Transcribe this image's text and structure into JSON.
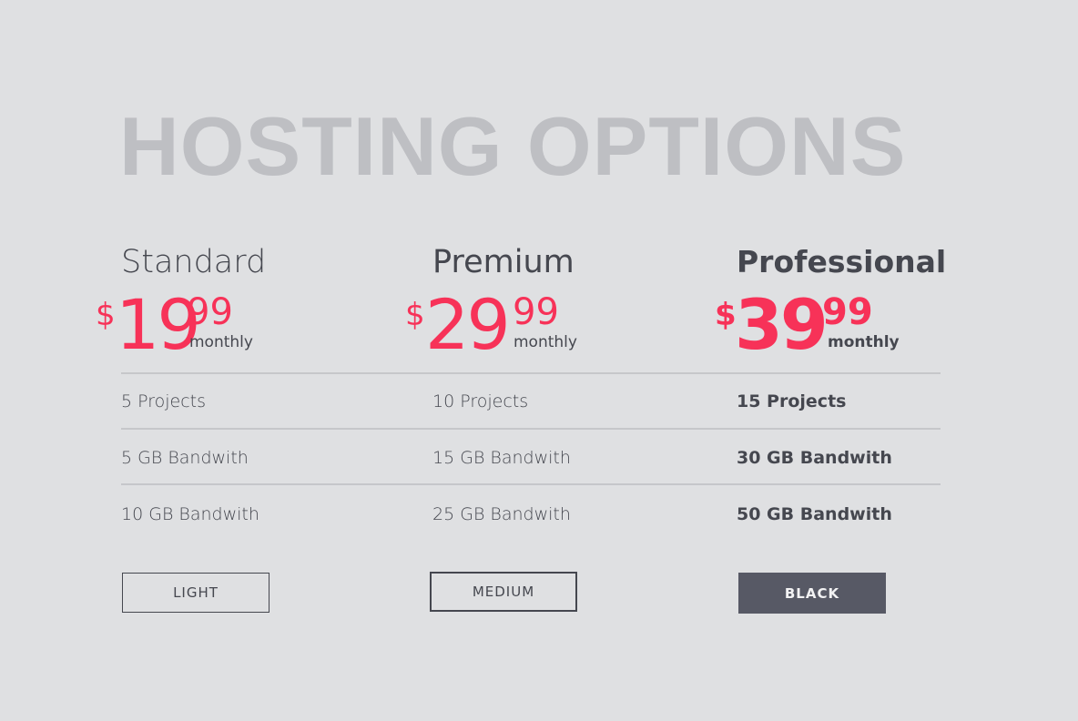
{
  "title": "HOSTING OPTIONS",
  "colors": {
    "background": "#dfe0e2",
    "accent": "#f73258",
    "text": "#45474f",
    "title": "#bebfc3",
    "dark_button": "#575965"
  },
  "plans": [
    {
      "name": "Standard",
      "currency": "$",
      "price_int": "19",
      "price_dec": "99",
      "period": "monthly",
      "features": [
        "5 Projects",
        "5 GB Bandwith",
        "10 GB Bandwith"
      ],
      "button": "LIGHT"
    },
    {
      "name": "Premium",
      "currency": "$",
      "price_int": "29",
      "price_dec": "99",
      "period": "monthly",
      "features": [
        "10 Projects",
        "15 GB Bandwith",
        "25 GB Bandwith"
      ],
      "button": "MEDIUM"
    },
    {
      "name": "Professional",
      "currency": "$",
      "price_int": "39",
      "price_dec": "99",
      "period": "monthly",
      "features": [
        "15 Projects",
        "30 GB Bandwith",
        "50 GB Bandwith"
      ],
      "button": "BLACK"
    }
  ]
}
